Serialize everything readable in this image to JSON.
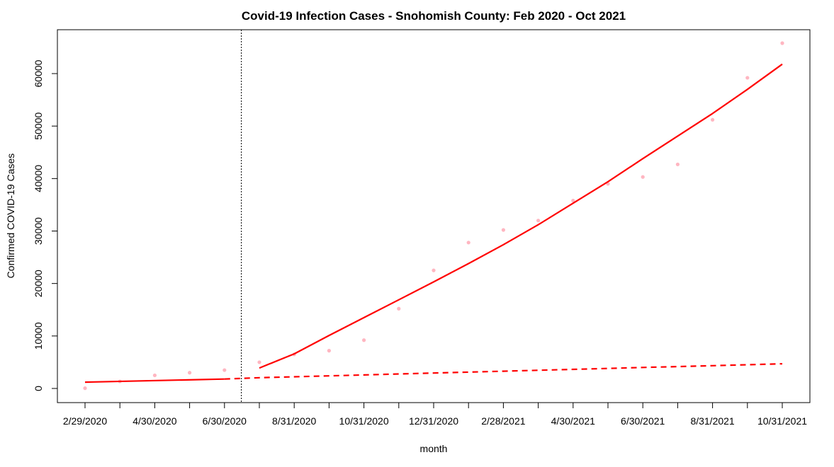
{
  "chart_data": {
    "type": "scatter",
    "title": "Covid-19 Infection Cases - Snohomish County: Feb 2020 - Oct 2021",
    "xlabel": "month",
    "ylabel": "Confirmed COVID-19 Cases",
    "x_ticks": [
      "2/29/2020",
      "3/31/2020",
      "4/30/2020",
      "5/31/2020",
      "6/30/2020",
      "7/31/2020",
      "8/31/2020",
      "9/30/2020",
      "10/31/2020",
      "11/30/2020",
      "12/31/2020",
      "1/31/2021",
      "2/28/2021",
      "3/31/2021",
      "4/30/2021",
      "5/31/2021",
      "6/30/2021",
      "7/31/2021",
      "8/31/2021",
      "9/30/2021",
      "10/31/2021"
    ],
    "x_tick_labels_shown": [
      "2/29/2020",
      "4/30/2020",
      "6/30/2020",
      "8/31/2020",
      "10/31/2020",
      "12/31/2020",
      "2/28/2021",
      "4/30/2021",
      "6/30/2021",
      "8/31/2021",
      "10/31/2021"
    ],
    "y_ticks": [
      0,
      10000,
      20000,
      30000,
      40000,
      50000,
      60000
    ],
    "ylim": [
      -2000,
      68000
    ],
    "intervention_month": "7/15/2020",
    "series": [
      {
        "kind": "points",
        "color": "#FFB6C1",
        "x": [
          "2/29/2020",
          "3/31/2020",
          "4/30/2020",
          "5/31/2020",
          "6/30/2020",
          "7/31/2020",
          "8/31/2020",
          "9/30/2020",
          "10/31/2020",
          "11/30/2020",
          "12/31/2020",
          "1/31/2021",
          "2/28/2021",
          "3/31/2021",
          "4/30/2021",
          "5/31/2021",
          "6/30/2021",
          "7/31/2021",
          "8/31/2021",
          "9/30/2021",
          "10/31/2021"
        ],
        "y": [
          50,
          1350,
          2500,
          3000,
          3500,
          5000,
          6500,
          7200,
          9200,
          15200,
          22500,
          27800,
          30200,
          32000,
          35800,
          39000,
          40300,
          42700,
          51200,
          59200,
          65800
        ]
      },
      {
        "kind": "fit-pre",
        "color": "#FF0000",
        "style": "solid",
        "x": [
          "2/29/2020",
          "6/30/2020"
        ],
        "y": [
          1200,
          1800
        ]
      },
      {
        "kind": "counterfactual",
        "color": "#FF0000",
        "style": "dashed",
        "x": [
          "6/30/2020",
          "7/31/2020",
          "8/31/2020",
          "9/30/2020",
          "10/31/2020",
          "11/30/2020",
          "12/31/2020",
          "1/31/2021",
          "2/28/2021",
          "3/31/2021",
          "4/30/2021",
          "5/31/2021",
          "6/30/2021",
          "7/31/2021",
          "8/31/2021",
          "9/30/2021",
          "10/31/2021"
        ],
        "y": [
          1800,
          2050,
          2220,
          2400,
          2580,
          2760,
          2940,
          3110,
          3290,
          3470,
          3640,
          3820,
          4000,
          4170,
          4340,
          4520,
          4700
        ]
      },
      {
        "kind": "fit-post",
        "color": "#FF0000",
        "style": "solid",
        "x": [
          "7/31/2020",
          "8/31/2020",
          "9/30/2020",
          "10/31/2020",
          "11/30/2020",
          "12/31/2020",
          "1/31/2021",
          "2/28/2021",
          "3/31/2021",
          "4/30/2021",
          "5/31/2021",
          "6/30/2021",
          "7/31/2021",
          "8/31/2021",
          "9/30/2021",
          "10/31/2021"
        ],
        "y": [
          3900,
          6600,
          10100,
          13500,
          16900,
          20300,
          23800,
          27400,
          31200,
          35300,
          39400,
          43800,
          48100,
          52400,
          57000,
          61800
        ]
      }
    ]
  }
}
